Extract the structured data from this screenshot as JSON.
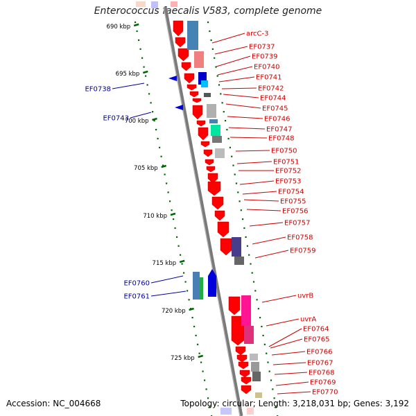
{
  "title": "Enterococcus faecalis V583, complete genome",
  "accession_label": "Accession: NC_004668",
  "topology_label": "Topology: circular; Length: 3,218,031 bp; Genes: 3,192",
  "colors": {
    "backbone": "#7a7a7a",
    "forward_gene": "#ff0000",
    "reverse_gene": "#0000dd",
    "scale_tick": "#006600",
    "label_red": "#cc0000",
    "label_blue": "#000099"
  },
  "scale_ticks": [
    "690 kbp",
    "695 kbp",
    "700 kbp",
    "705 kbp",
    "710 kbp",
    "715 kbp",
    "720 kbp",
    "725 kbp"
  ],
  "forward_labels": [
    "arcC-3",
    "EF0737",
    "EF0739",
    "EF0740",
    "EF0741",
    "EF0742",
    "EF0744",
    "EF0745",
    "EF0746",
    "EF0747",
    "EF0748",
    "EF0750",
    "EF0751",
    "EF0752",
    "EF0753",
    "EF0754",
    "EF0755",
    "EF0756",
    "EF0757",
    "EF0758",
    "EF0759",
    "uvrB",
    "uvrA",
    "EF0764",
    "EF0765",
    "EF0766",
    "EF0767",
    "EF0768",
    "EF0769",
    "EF0770"
  ],
  "reverse_labels": [
    "EF0738",
    "EF0743",
    "EF0760",
    "EF0761"
  ]
}
